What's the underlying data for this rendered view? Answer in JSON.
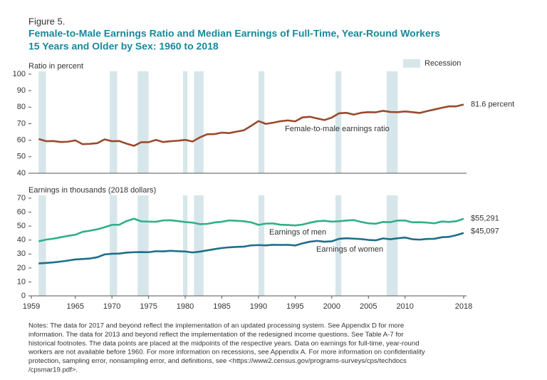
{
  "figure_label": "Figure 5.",
  "title": [
    "Female-to-Male Earnings Ratio and Median Earnings of Full-Time, Year-Round Workers",
    "15 Years and Older by Sex: 1960 to 2018"
  ],
  "recession_label": "Recession",
  "recession_color": "#d6e6ea",
  "recessions": [
    [
      1960,
      1961
    ],
    [
      1969.7,
      1970.7
    ],
    [
      1973.5,
      1975
    ],
    [
      1979.7,
      1980.3
    ],
    [
      1981.2,
      1982.5
    ],
    [
      1990,
      1990.8
    ],
    [
      2000.5,
      2001.3
    ],
    [
      2007.5,
      2009
    ]
  ],
  "chart_data": [
    {
      "type": "line",
      "y_label": "Ratio in percent",
      "x": [
        1960,
        1961,
        1962,
        1963,
        1964,
        1965,
        1966,
        1967,
        1968,
        1969,
        1970,
        1971,
        1972,
        1973,
        1974,
        1975,
        1976,
        1977,
        1978,
        1979,
        1980,
        1981,
        1982,
        1983,
        1984,
        1985,
        1986,
        1987,
        1988,
        1989,
        1990,
        1991,
        1992,
        1993,
        1994,
        1995,
        1996,
        1997,
        1998,
        1999,
        2000,
        2001,
        2002,
        2003,
        2004,
        2005,
        2006,
        2007,
        2008,
        2009,
        2010,
        2011,
        2012,
        2013,
        2014,
        2015,
        2016,
        2017,
        2018
      ],
      "xlim": [
        1959,
        2018
      ],
      "ylim": [
        40,
        100
      ],
      "yticks": [
        40,
        50,
        60,
        70,
        80,
        90,
        100
      ],
      "series": [
        {
          "name": "Female-to-male earnings ratio",
          "color": "#9a4a2e",
          "values": [
            60.7,
            59.4,
            59.5,
            58.9,
            59.1,
            59.9,
            57.6,
            57.8,
            58.2,
            60.5,
            59.4,
            59.5,
            57.9,
            56.6,
            58.8,
            58.8,
            60.2,
            58.9,
            59.4,
            59.7,
            60.2,
            59.2,
            61.7,
            63.6,
            63.7,
            64.6,
            64.3,
            65.2,
            66.0,
            68.7,
            71.6,
            69.9,
            70.6,
            71.5,
            72.0,
            71.4,
            73.8,
            74.2,
            73.2,
            72.2,
            73.7,
            76.3,
            76.6,
            75.5,
            76.6,
            77.0,
            76.9,
            77.8,
            77.1,
            77.0,
            77.4,
            77.0,
            76.5,
            77.6,
            78.6,
            79.6,
            80.5,
            80.5,
            81.6
          ],
          "value_labels": [
            null,
            null,
            null,
            null,
            null,
            null,
            null,
            null,
            null,
            null,
            null,
            null,
            null,
            null,
            null,
            null,
            null,
            null,
            null,
            null,
            null,
            null,
            null,
            null,
            null,
            null,
            null,
            null,
            null,
            null,
            null,
            null,
            null,
            null,
            null,
            null,
            null,
            null,
            null,
            null,
            null,
            null,
            null,
            null,
            null,
            null,
            null,
            null,
            null,
            null,
            null,
            null,
            null,
            null,
            null,
            null,
            null,
            null,
            "81.6 percent"
          ]
        }
      ]
    },
    {
      "type": "line",
      "y_label": "Earnings in thousands (2018 dollars)",
      "x": [
        1960,
        1961,
        1962,
        1963,
        1964,
        1965,
        1966,
        1967,
        1968,
        1969,
        1970,
        1971,
        1972,
        1973,
        1974,
        1975,
        1976,
        1977,
        1978,
        1979,
        1980,
        1981,
        1982,
        1983,
        1984,
        1985,
        1986,
        1987,
        1988,
        1989,
        1990,
        1991,
        1992,
        1993,
        1994,
        1995,
        1996,
        1997,
        1998,
        1999,
        2000,
        2001,
        2002,
        2003,
        2004,
        2005,
        2006,
        2007,
        2008,
        2009,
        2010,
        2011,
        2012,
        2013,
        2014,
        2015,
        2016,
        2017,
        2018
      ],
      "xlim": [
        1959,
        2018
      ],
      "xticks": [
        1959,
        1965,
        1970,
        1975,
        1980,
        1985,
        1990,
        1995,
        2000,
        2005,
        2010,
        2018
      ],
      "ylim": [
        0,
        70
      ],
      "yticks": [
        0,
        10,
        20,
        30,
        40,
        50,
        60,
        70
      ],
      "series": [
        {
          "name": "Earnings of men",
          "color": "#2fb088",
          "values": [
            39.1,
            40.3,
            41.0,
            42.0,
            43.0,
            43.8,
            45.9,
            46.7,
            47.7,
            49.2,
            50.9,
            51.0,
            53.6,
            55.3,
            53.4,
            53.2,
            53.1,
            54.1,
            54.2,
            53.6,
            52.9,
            52.5,
            51.4,
            51.6,
            52.6,
            53.1,
            54.1,
            53.8,
            53.5,
            52.7,
            50.9,
            51.8,
            51.9,
            51.0,
            50.8,
            50.5,
            51.1,
            52.4,
            53.5,
            53.8,
            53.2,
            53.5,
            54.0,
            54.3,
            53.0,
            52.0,
            51.7,
            53.0,
            52.8,
            54.0,
            54.0,
            52.7,
            52.8,
            52.5,
            52.0,
            53.3,
            53.0,
            53.5,
            55.291
          ],
          "value_labels": [
            null,
            null,
            null,
            null,
            null,
            null,
            null,
            null,
            null,
            null,
            null,
            null,
            null,
            null,
            null,
            null,
            null,
            null,
            null,
            null,
            null,
            null,
            null,
            null,
            null,
            null,
            null,
            null,
            null,
            null,
            null,
            null,
            null,
            null,
            null,
            null,
            null,
            null,
            null,
            null,
            null,
            null,
            null,
            null,
            null,
            null,
            null,
            null,
            null,
            null,
            null,
            null,
            null,
            null,
            null,
            null,
            null,
            null,
            "$55,291"
          ]
        },
        {
          "name": "Earnings of women",
          "color": "#1d6f8a",
          "values": [
            23.3,
            23.6,
            24.0,
            24.6,
            25.3,
            26.1,
            26.4,
            26.8,
            27.7,
            29.7,
            30.2,
            30.3,
            31.0,
            31.3,
            31.4,
            31.3,
            32.0,
            31.9,
            32.3,
            32.0,
            31.8,
            31.1,
            31.7,
            32.6,
            33.5,
            34.3,
            34.8,
            35.1,
            35.3,
            36.2,
            36.4,
            36.2,
            36.6,
            36.5,
            36.6,
            36.1,
            37.6,
            38.8,
            39.4,
            38.8,
            39.1,
            40.9,
            41.3,
            41.0,
            40.7,
            40.1,
            39.8,
            41.2,
            40.6,
            41.3,
            41.8,
            40.6,
            40.3,
            40.8,
            40.9,
            42.0,
            42.3,
            43.5,
            45.097
          ],
          "value_labels": [
            null,
            null,
            null,
            null,
            null,
            null,
            null,
            null,
            null,
            null,
            null,
            null,
            null,
            null,
            null,
            null,
            null,
            null,
            null,
            null,
            null,
            null,
            null,
            null,
            null,
            null,
            null,
            null,
            null,
            null,
            null,
            null,
            null,
            null,
            null,
            null,
            null,
            null,
            null,
            null,
            null,
            null,
            null,
            null,
            null,
            null,
            null,
            null,
            null,
            null,
            null,
            null,
            null,
            null,
            null,
            null,
            null,
            null,
            "$45,097"
          ]
        }
      ]
    }
  ],
  "notes": [
    "Notes: The data for 2017 and beyond reflect the implementation of an updated processing system. See Appendix D for more",
    "information. The data for 2013 and beyond reflect the implementation of the redesigned income questions. See Table A-7 for",
    "historical footnotes. The data points are placed at the midpoints of the respective years. Data on earnings for full-time, year-round",
    "workers are not available before 1960. For more information on recessions, see Appendix A. For more information on confidentiality",
    "protection, sampling error, nonsampling error, and definitions, see <https://www2.census.gov/programs-surveys/cps/techdocs",
    "/cpsmar19.pdf>."
  ]
}
